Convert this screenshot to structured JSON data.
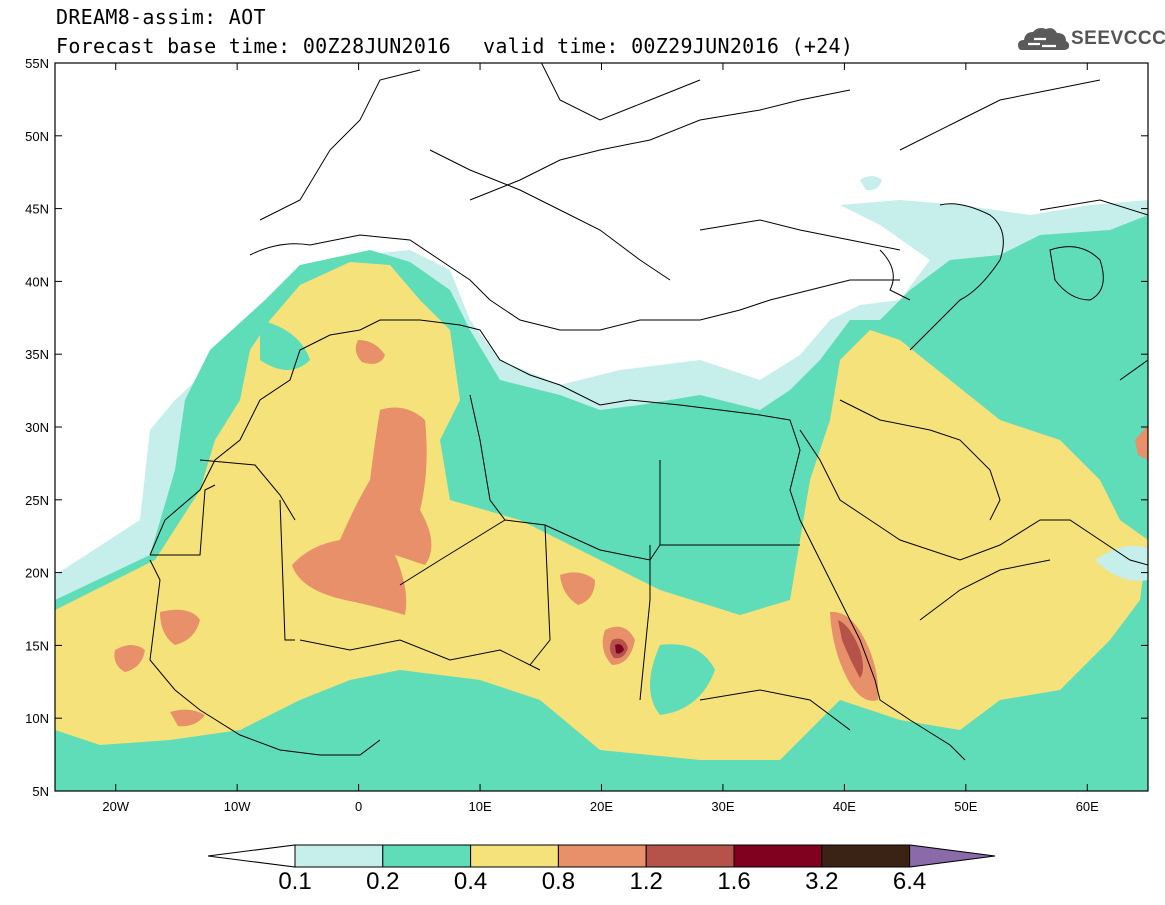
{
  "header": {
    "line1": "DREAM8-assim: AOT",
    "line2": "Forecast base time: 00Z28JUN2016",
    "valid": "valid time: 00Z29JUN2016 (+24)",
    "logo_text": "SEEVCCC"
  },
  "map": {
    "lon_range": [
      -25,
      65
    ],
    "lat_range": [
      5,
      55
    ],
    "lat_labels": [
      "55N",
      "50N",
      "45N",
      "40N",
      "35N",
      "30N",
      "25N",
      "20N",
      "15N",
      "10N",
      "5N"
    ],
    "lat_values": [
      55,
      50,
      45,
      40,
      35,
      30,
      25,
      20,
      15,
      10,
      5
    ],
    "lon_labels": [
      "20W",
      "10W",
      "0",
      "10E",
      "20E",
      "30E",
      "40E",
      "50E",
      "60E"
    ],
    "lon_values": [
      -20,
      -10,
      0,
      10,
      20,
      30,
      40,
      50,
      60
    ]
  },
  "colorbar": {
    "labels": [
      "0.1",
      "0.2",
      "0.4",
      "0.8",
      "1.2",
      "1.6",
      "3.2",
      "6.4"
    ],
    "colors": [
      "#ffffff",
      "#c6eeea",
      "#5fdcb8",
      "#f6e27a",
      "#e8906a",
      "#b5534a",
      "#800020",
      "#3a2214",
      "#8b6aa9"
    ]
  }
}
